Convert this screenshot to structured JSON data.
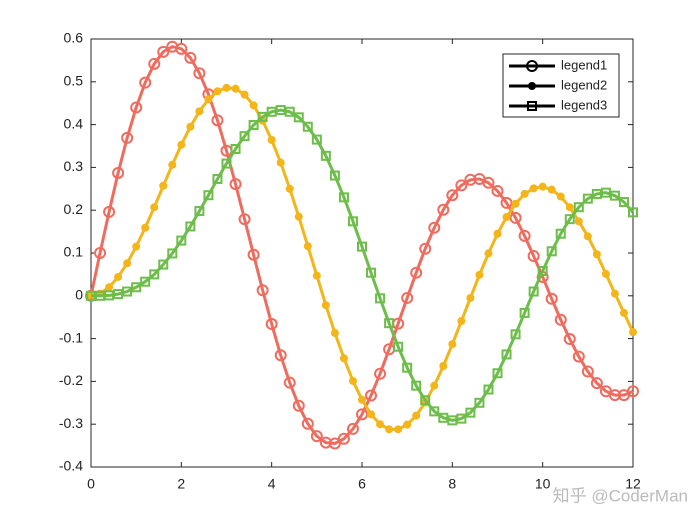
{
  "chart_data": {
    "type": "line",
    "x": [
      0,
      0.2,
      0.4,
      0.6,
      0.8,
      1,
      1.2,
      1.4,
      1.6,
      1.8,
      2,
      2.2,
      2.4,
      2.6,
      2.8,
      3,
      3.2,
      3.4,
      3.6,
      3.8,
      4,
      4.2,
      4.4,
      4.6,
      4.8,
      5,
      5.2,
      5.4,
      5.6,
      5.8,
      6,
      6.2,
      6.4,
      6.6,
      6.8,
      7,
      7.2,
      7.4,
      7.6,
      7.8,
      8,
      8.2,
      8.4,
      8.6,
      8.8,
      9,
      9.2,
      9.4,
      9.6,
      9.8,
      10,
      10.2,
      10.4,
      10.6,
      10.8,
      11,
      11.2,
      11.4,
      11.6,
      11.8,
      12
    ],
    "series": [
      {
        "name": "legend1",
        "color": "#ef6b5e",
        "marker": "o",
        "values": [
          0,
          0.1,
          0.196,
          0.287,
          0.369,
          0.44,
          0.498,
          0.542,
          0.57,
          0.582,
          0.577,
          0.556,
          0.52,
          0.471,
          0.41,
          0.339,
          0.261,
          0.179,
          0.096,
          0.013,
          -0.066,
          -0.139,
          -0.203,
          -0.257,
          -0.299,
          -0.328,
          -0.343,
          -0.345,
          -0.334,
          -0.311,
          -0.277,
          -0.233,
          -0.182,
          -0.125,
          -0.065,
          -0.005,
          0.054,
          0.11,
          0.159,
          0.201,
          0.235,
          0.258,
          0.271,
          0.273,
          0.264,
          0.245,
          0.217,
          0.182,
          0.14,
          0.093,
          0.044,
          -0.007,
          -0.056,
          -0.101,
          -0.142,
          -0.177,
          -0.204,
          -0.223,
          -0.232,
          -0.232,
          -0.223
        ]
      },
      {
        "name": "legend2",
        "color": "#f3b517",
        "marker": ".",
        "values": [
          0,
          0.005,
          0.02,
          0.044,
          0.076,
          0.115,
          0.159,
          0.207,
          0.257,
          0.306,
          0.353,
          0.395,
          0.431,
          0.459,
          0.478,
          0.486,
          0.484,
          0.47,
          0.445,
          0.409,
          0.364,
          0.311,
          0.25,
          0.185,
          0.116,
          0.047,
          -0.022,
          -0.087,
          -0.146,
          -0.199,
          -0.243,
          -0.277,
          -0.3,
          -0.312,
          -0.312,
          -0.301,
          -0.28,
          -0.249,
          -0.21,
          -0.164,
          -0.113,
          -0.059,
          -0.005,
          0.049,
          0.099,
          0.145,
          0.184,
          0.215,
          0.238,
          0.251,
          0.255,
          0.248,
          0.232,
          0.207,
          0.174,
          0.139,
          0.097,
          0.051,
          0.005,
          -0.04,
          -0.085
        ]
      },
      {
        "name": "legend3",
        "color": "#6dbd4a",
        "marker": "s",
        "values": [
          0,
          0.0,
          0.001,
          0.004,
          0.01,
          0.02,
          0.033,
          0.05,
          0.073,
          0.099,
          0.129,
          0.162,
          0.198,
          0.235,
          0.273,
          0.309,
          0.343,
          0.373,
          0.399,
          0.418,
          0.43,
          0.434,
          0.43,
          0.417,
          0.395,
          0.365,
          0.327,
          0.281,
          0.23,
          0.174,
          0.115,
          0.054,
          -0.006,
          -0.064,
          -0.119,
          -0.168,
          -0.21,
          -0.244,
          -0.27,
          -0.285,
          -0.291,
          -0.287,
          -0.273,
          -0.25,
          -0.219,
          -0.181,
          -0.137,
          -0.09,
          -0.04,
          0.01,
          0.058,
          0.104,
          0.145,
          0.179,
          0.207,
          0.227,
          0.238,
          0.241,
          0.234,
          0.219,
          0.195
        ]
      }
    ],
    "xlim": [
      0,
      12
    ],
    "xticks": [
      0,
      2,
      4,
      6,
      8,
      10,
      12
    ],
    "ylim": [
      -0.4,
      0.6
    ],
    "yticks": [
      -0.4,
      -0.3,
      -0.2,
      -0.1,
      0,
      0.1,
      0.2,
      0.3,
      0.4,
      0.5,
      0.6
    ],
    "legend_location": "northeast"
  },
  "watermark": "知乎 @CoderMan"
}
